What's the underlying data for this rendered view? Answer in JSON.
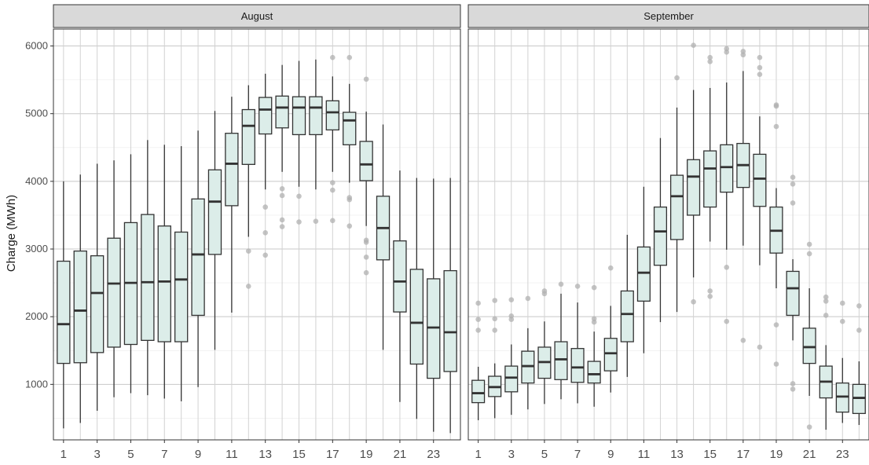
{
  "chart_data": {
    "type": "boxplot",
    "title": "",
    "xlabel": "",
    "ylabel": "Charge (MWh)",
    "ylim": [
      180,
      6250
    ],
    "y_ticks": [
      1000,
      2000,
      3000,
      4000,
      5000,
      6000
    ],
    "x_tick_labels": [
      "1",
      "3",
      "5",
      "7",
      "9",
      "11",
      "13",
      "15",
      "17",
      "19",
      "21",
      "23"
    ],
    "x_range": [
      0.4,
      24.6
    ],
    "grid": true,
    "colors": {
      "box_fill": "#dcede9",
      "box_stroke": "#333333",
      "median": "#333333",
      "outlier": "#b0b0b0",
      "strip_bg": "#d9d9d9"
    },
    "panels": [
      {
        "label": "August",
        "boxes": [
          {
            "x": 1,
            "lower": 350,
            "q1": 1310,
            "median": 1890,
            "q3": 2820,
            "upper": 4000,
            "outliers": []
          },
          {
            "x": 2,
            "lower": 430,
            "q1": 1320,
            "median": 2090,
            "q3": 2970,
            "upper": 4100,
            "outliers": []
          },
          {
            "x": 3,
            "lower": 610,
            "q1": 1470,
            "median": 2350,
            "q3": 2900,
            "upper": 4260,
            "outliers": []
          },
          {
            "x": 4,
            "lower": 810,
            "q1": 1550,
            "median": 2490,
            "q3": 3160,
            "upper": 4310,
            "outliers": []
          },
          {
            "x": 5,
            "lower": 870,
            "q1": 1590,
            "median": 2500,
            "q3": 3390,
            "upper": 4400,
            "outliers": []
          },
          {
            "x": 6,
            "lower": 840,
            "q1": 1650,
            "median": 2510,
            "q3": 3510,
            "upper": 4610,
            "outliers": []
          },
          {
            "x": 7,
            "lower": 790,
            "q1": 1630,
            "median": 2520,
            "q3": 3340,
            "upper": 4540,
            "outliers": []
          },
          {
            "x": 8,
            "lower": 750,
            "q1": 1630,
            "median": 2550,
            "q3": 3250,
            "upper": 4520,
            "outliers": []
          },
          {
            "x": 9,
            "lower": 960,
            "q1": 2020,
            "median": 2920,
            "q3": 3740,
            "upper": 4750,
            "outliers": []
          },
          {
            "x": 10,
            "lower": 1510,
            "q1": 2920,
            "median": 3700,
            "q3": 4170,
            "upper": 5040,
            "outliers": []
          },
          {
            "x": 11,
            "lower": 2060,
            "q1": 3640,
            "median": 4260,
            "q3": 4710,
            "upper": 5250,
            "outliers": []
          },
          {
            "x": 12,
            "lower": 3180,
            "q1": 4250,
            "median": 4820,
            "q3": 5060,
            "upper": 5420,
            "outliers": [
              2450,
              2970
            ]
          },
          {
            "x": 13,
            "lower": 3880,
            "q1": 4700,
            "median": 5060,
            "q3": 5240,
            "upper": 5590,
            "outliers": [
              2910,
              3240,
              3620
            ]
          },
          {
            "x": 14,
            "lower": 4140,
            "q1": 4790,
            "median": 5090,
            "q3": 5260,
            "upper": 5720,
            "outliers": [
              3330,
              3430,
              3790,
              3890
            ]
          },
          {
            "x": 15,
            "lower": 3920,
            "q1": 4690,
            "median": 5090,
            "q3": 5250,
            "upper": 5780,
            "outliers": [
              3400,
              3780
            ]
          },
          {
            "x": 16,
            "lower": 3880,
            "q1": 4690,
            "median": 5090,
            "q3": 5250,
            "upper": 5800,
            "outliers": [
              3410
            ]
          },
          {
            "x": 17,
            "lower": 4140,
            "q1": 4760,
            "median": 5020,
            "q3": 5190,
            "upper": 5550,
            "outliers": [
              3420,
              3870,
              3980,
              5830
            ]
          },
          {
            "x": 18,
            "lower": 3980,
            "q1": 4540,
            "median": 4900,
            "q3": 5020,
            "upper": 5440,
            "outliers": [
              3340,
              3730,
              3760,
              5830
            ]
          },
          {
            "x": 19,
            "lower": 3340,
            "q1": 4010,
            "median": 4250,
            "q3": 4590,
            "upper": 5030,
            "outliers": [
              2650,
              2880,
              3100,
              3130,
              5510
            ]
          },
          {
            "x": 20,
            "lower": 1510,
            "q1": 2840,
            "median": 3310,
            "q3": 3780,
            "upper": 4840,
            "outliers": []
          },
          {
            "x": 21,
            "lower": 740,
            "q1": 2070,
            "median": 2520,
            "q3": 3120,
            "upper": 4160,
            "outliers": []
          },
          {
            "x": 22,
            "lower": 490,
            "q1": 1300,
            "median": 1910,
            "q3": 2700,
            "upper": 4050,
            "outliers": []
          },
          {
            "x": 23,
            "lower": 300,
            "q1": 1090,
            "median": 1840,
            "q3": 2560,
            "upper": 4040,
            "outliers": []
          },
          {
            "x": 24,
            "lower": 280,
            "q1": 1190,
            "median": 1770,
            "q3": 2680,
            "upper": 4050,
            "outliers": []
          }
        ]
      },
      {
        "label": "September",
        "boxes": [
          {
            "x": 1,
            "lower": 470,
            "q1": 730,
            "median": 870,
            "q3": 1060,
            "upper": 1260,
            "outliers": [
              1800,
              1960,
              2200
            ]
          },
          {
            "x": 2,
            "lower": 500,
            "q1": 820,
            "median": 960,
            "q3": 1120,
            "upper": 1310,
            "outliers": [
              1800,
              1970,
              2240
            ]
          },
          {
            "x": 3,
            "lower": 550,
            "q1": 890,
            "median": 1100,
            "q3": 1270,
            "upper": 1590,
            "outliers": [
              1960,
              2010,
              2250
            ]
          },
          {
            "x": 4,
            "lower": 630,
            "q1": 1020,
            "median": 1270,
            "q3": 1490,
            "upper": 1830,
            "outliers": [
              2270
            ]
          },
          {
            "x": 5,
            "lower": 710,
            "q1": 1090,
            "median": 1330,
            "q3": 1550,
            "upper": 1930,
            "outliers": [
              2340,
              2380
            ]
          },
          {
            "x": 6,
            "lower": 780,
            "q1": 1070,
            "median": 1370,
            "q3": 1630,
            "upper": 2340,
            "outliers": [
              2480
            ]
          },
          {
            "x": 7,
            "lower": 720,
            "q1": 1030,
            "median": 1250,
            "q3": 1530,
            "upper": 2210,
            "outliers": [
              2450
            ]
          },
          {
            "x": 8,
            "lower": 670,
            "q1": 1020,
            "median": 1150,
            "q3": 1340,
            "upper": 1780,
            "outliers": [
              1920,
              1970,
              2430
            ]
          },
          {
            "x": 9,
            "lower": 880,
            "q1": 1200,
            "median": 1460,
            "q3": 1680,
            "upper": 2160,
            "outliers": [
              2720
            ]
          },
          {
            "x": 10,
            "lower": 1110,
            "q1": 1630,
            "median": 2040,
            "q3": 2380,
            "upper": 3210,
            "outliers": []
          },
          {
            "x": 11,
            "lower": 1460,
            "q1": 2230,
            "median": 2650,
            "q3": 3030,
            "upper": 3920,
            "outliers": []
          },
          {
            "x": 12,
            "lower": 1920,
            "q1": 2760,
            "median": 3260,
            "q3": 3620,
            "upper": 4640,
            "outliers": []
          },
          {
            "x": 13,
            "lower": 2070,
            "q1": 3140,
            "median": 3780,
            "q3": 4090,
            "upper": 5090,
            "outliers": [
              5530
            ]
          },
          {
            "x": 14,
            "lower": 2580,
            "q1": 3500,
            "median": 4070,
            "q3": 4320,
            "upper": 5350,
            "outliers": [
              2220,
              6010
            ]
          },
          {
            "x": 15,
            "lower": 3110,
            "q1": 3620,
            "median": 4190,
            "q3": 4450,
            "upper": 5380,
            "outliers": [
              2300,
              2380,
              5770,
              5830
            ]
          },
          {
            "x": 16,
            "lower": 2990,
            "q1": 3840,
            "median": 4210,
            "q3": 4540,
            "upper": 5460,
            "outliers": [
              1930,
              2730,
              5910,
              5960
            ]
          },
          {
            "x": 17,
            "lower": 3050,
            "q1": 3910,
            "median": 4240,
            "q3": 4560,
            "upper": 5630,
            "outliers": [
              1650,
              5870,
              5920
            ]
          },
          {
            "x": 18,
            "lower": 2760,
            "q1": 3630,
            "median": 4040,
            "q3": 4400,
            "upper": 4960,
            "outliers": [
              1550,
              5580,
              5680,
              5830
            ]
          },
          {
            "x": 19,
            "lower": 2420,
            "q1": 2940,
            "median": 3270,
            "q3": 3620,
            "upper": 3900,
            "outliers": [
              1300,
              1880,
              4810,
              5110,
              5130
            ]
          },
          {
            "x": 20,
            "lower": 1650,
            "q1": 2020,
            "median": 2420,
            "q3": 2670,
            "upper": 2850,
            "outliers": [
              930,
              1010,
              3680,
              3960,
              4060
            ]
          },
          {
            "x": 21,
            "lower": 830,
            "q1": 1310,
            "median": 1550,
            "q3": 1830,
            "upper": 2420,
            "outliers": [
              370,
              2930,
              3070
            ]
          },
          {
            "x": 22,
            "lower": 330,
            "q1": 800,
            "median": 1040,
            "q3": 1270,
            "upper": 1580,
            "outliers": [
              2020,
              2230,
              2290
            ]
          },
          {
            "x": 23,
            "lower": 430,
            "q1": 590,
            "median": 820,
            "q3": 1020,
            "upper": 1390,
            "outliers": [
              1930,
              2200
            ]
          },
          {
            "x": 24,
            "lower": 400,
            "q1": 570,
            "median": 800,
            "q3": 1000,
            "upper": 1340,
            "outliers": [
              1800,
              2160
            ]
          }
        ]
      }
    ]
  }
}
